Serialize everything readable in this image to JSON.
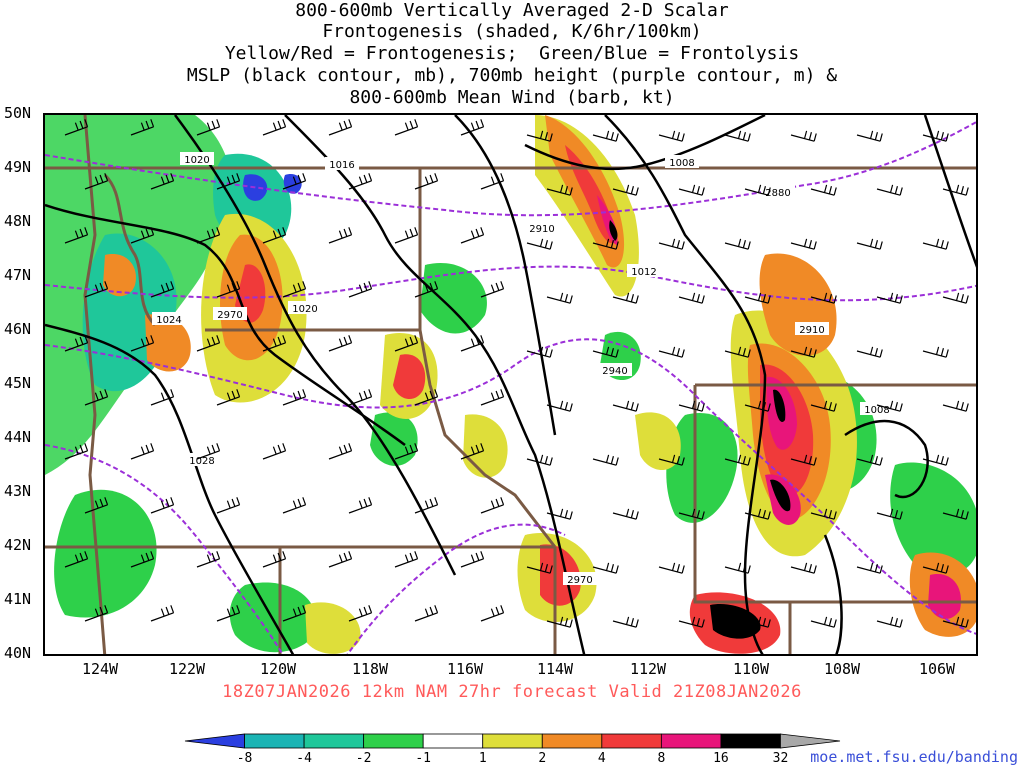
{
  "title": {
    "line1": "800-600mb Vertically Averaged 2-D Scalar",
    "line2": "Frontogenesis (shaded, K/6hr/100km)",
    "line3": "Yellow/Red = Frontogenesis;  Green/Blue = Frontolysis",
    "line4": "MSLP (black contour, mb), 700mb height (purple contour, m) &",
    "line5": "800-600mb Mean Wind (barb, kt)"
  },
  "lat_labels": [
    "50N",
    "49N",
    "48N",
    "47N",
    "46N",
    "45N",
    "44N",
    "43N",
    "42N",
    "41N",
    "40N"
  ],
  "lon_labels": [
    "124W",
    "122W",
    "120W",
    "118W",
    "116W",
    "114W",
    "112W",
    "110W",
    "108W",
    "106W"
  ],
  "mslp_labels": [
    "1020",
    "1016",
    "1008",
    "1024",
    "1020",
    "1012",
    "1028",
    "1008"
  ],
  "height_labels": [
    "2880",
    "2910",
    "2970",
    "2940",
    "2910",
    "2970"
  ],
  "run_info": "18Z07JAN2026 12km NAM 27hr forecast Valid 21Z08JAN2026",
  "colorbar": {
    "labels": [
      "-8",
      "-4",
      "-2",
      "-1",
      "1",
      "2",
      "4",
      "8",
      "16",
      "32"
    ],
    "colors": [
      "#2b3fe0",
      "#1bb4b4",
      "#1fc79a",
      "#2ed04a",
      "#ffffff",
      "#dede3a",
      "#f08a26",
      "#f03a3a",
      "#e8157a",
      "#000000",
      "#a8a8a8"
    ]
  },
  "credit": "moe.met.fsu.edu/banding"
}
